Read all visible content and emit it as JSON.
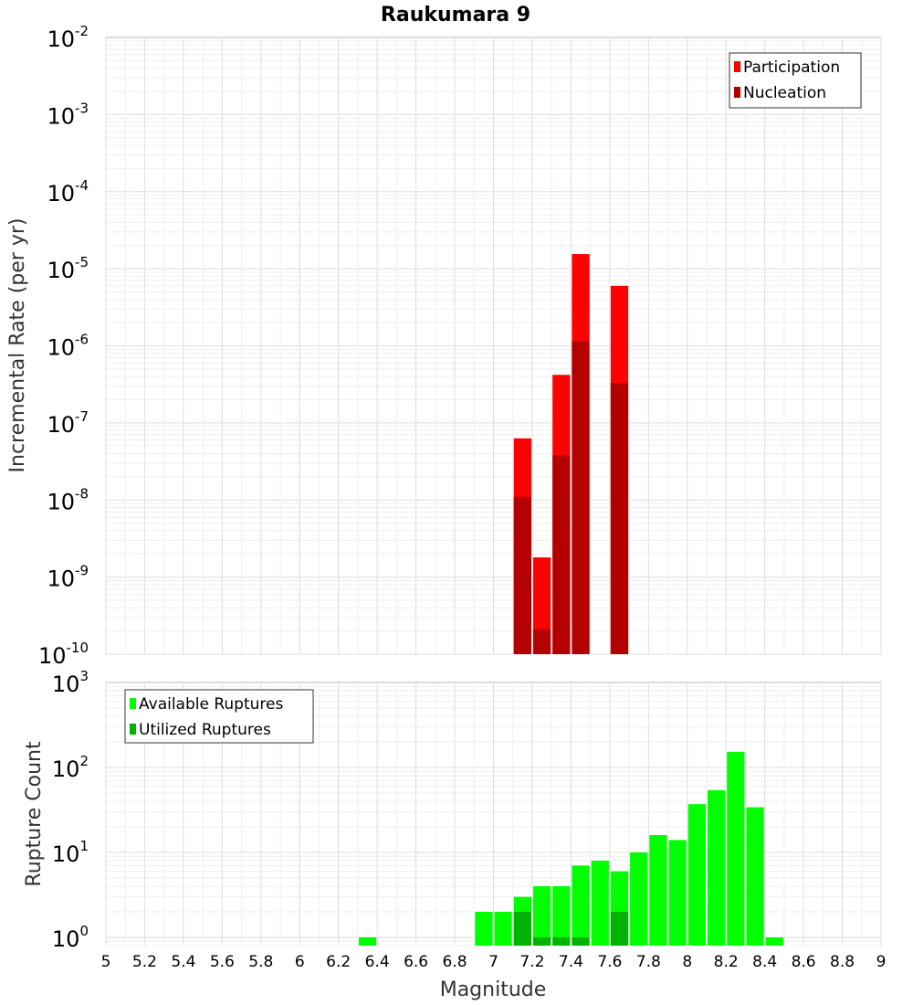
{
  "chart_data": {
    "title": "Raukumara 9",
    "xlabel": "Magnitude",
    "xlim": [
      5,
      9
    ],
    "xticks": [
      "5",
      "5.2",
      "5.4",
      "5.6",
      "5.8",
      "6",
      "6.2",
      "6.4",
      "6.6",
      "6.8",
      "7",
      "7.2",
      "7.4",
      "7.6",
      "7.8",
      "8",
      "8.2",
      "8.4",
      "8.6",
      "8.8",
      "9"
    ],
    "panels": [
      {
        "type": "bar",
        "ylabel": "Incremental Rate (per yr)",
        "yscale": "log",
        "ylim": [
          1e-10,
          0.01
        ],
        "yticks": [
          {
            "base": "10",
            "exp": "-10"
          },
          {
            "base": "10",
            "exp": "-9"
          },
          {
            "base": "10",
            "exp": "-8"
          },
          {
            "base": "10",
            "exp": "-7"
          },
          {
            "base": "10",
            "exp": "-6"
          },
          {
            "base": "10",
            "exp": "-5"
          },
          {
            "base": "10",
            "exp": "-4"
          },
          {
            "base": "10",
            "exp": "-3"
          },
          {
            "base": "10",
            "exp": "-2"
          }
        ],
        "grid": true,
        "legend_position": "top-right",
        "x": [
          7.15,
          7.25,
          7.35,
          7.45,
          7.65
        ],
        "series": [
          {
            "name": "Participation",
            "color": "#ff0000",
            "values": [
              6.3e-08,
              1.8e-09,
              4.2e-07,
              1.55e-05,
              6e-06
            ]
          },
          {
            "name": "Nucleation",
            "color": "#b30000",
            "values": [
              1.1e-08,
              2.1e-10,
              3.8e-08,
              1.15e-06,
              3.3e-07
            ]
          }
        ]
      },
      {
        "type": "bar",
        "ylabel": "Rupture Count",
        "yscale": "log",
        "ylim": [
          0.8,
          1000
        ],
        "yticks": [
          {
            "base": "10",
            "exp": "0"
          },
          {
            "base": "10",
            "exp": "1"
          },
          {
            "base": "10",
            "exp": "2"
          },
          {
            "base": "10",
            "exp": "3"
          }
        ],
        "grid": true,
        "legend_position": "top-left",
        "x": [
          6.35,
          6.95,
          7.05,
          7.15,
          7.25,
          7.35,
          7.45,
          7.55,
          7.65,
          7.75,
          7.85,
          7.95,
          8.05,
          8.15,
          8.25,
          8.35,
          8.45
        ],
        "series": [
          {
            "name": "Available Ruptures",
            "color": "#00ff00",
            "values": [
              1,
              2,
              2,
              3,
              4,
              4,
              7,
              8,
              6,
              10,
              16,
              14,
              37,
              54,
              153,
              34,
              1
            ]
          },
          {
            "name": "Utilized Ruptures",
            "color": "#00b300",
            "values": [
              0,
              0,
              0,
              2,
              1,
              1,
              1,
              0,
              2,
              0,
              0,
              0,
              0,
              0,
              0,
              0,
              0
            ]
          }
        ]
      }
    ]
  }
}
